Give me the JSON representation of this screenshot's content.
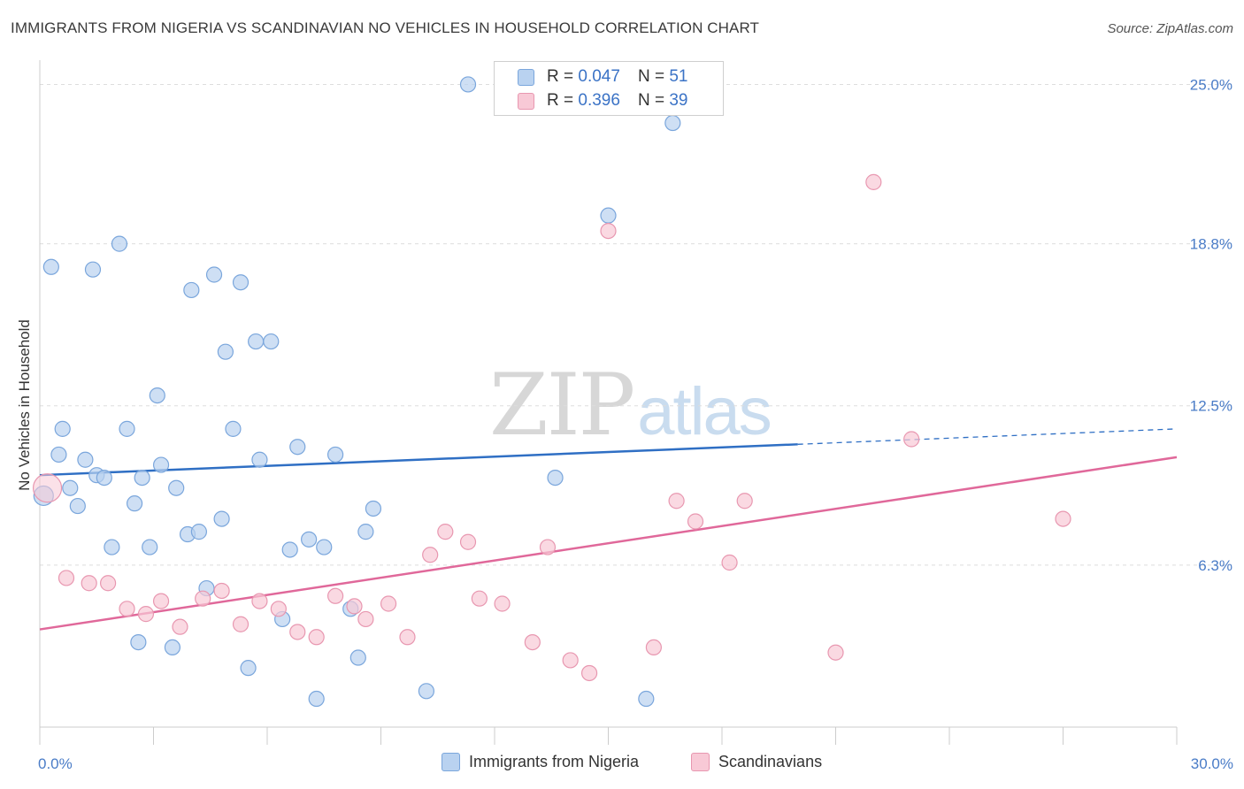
{
  "header": {
    "title": "IMMIGRANTS FROM NIGERIA VS SCANDINAVIAN NO VEHICLES IN HOUSEHOLD CORRELATION CHART",
    "source": "Source: ZipAtlas.com"
  },
  "watermark": {
    "zip": "ZIP",
    "atlas": "atlas"
  },
  "legend": {
    "r_label": "R =",
    "n_label": "N =",
    "series1": {
      "r": "0.047",
      "n": "51"
    },
    "series2": {
      "r": "0.396",
      "n": "39"
    }
  },
  "colors": {
    "blue_fill": "#b9d2f0",
    "blue_stroke": "#7aa6dc",
    "blue_line": "#2f6fc4",
    "pink_fill": "#f8c9d6",
    "pink_stroke": "#e897b0",
    "pink_line": "#e0689a",
    "tick_text": "#4a7cc7",
    "grid": "#dddddd"
  },
  "chart_data": {
    "type": "scatter",
    "title": "IMMIGRANTS FROM NIGERIA VS SCANDINAVIAN NO VEHICLES IN HOUSEHOLD CORRELATION CHART",
    "xlabel": "",
    "ylabel": "No Vehicles in Household",
    "xlim": [
      0,
      30
    ],
    "ylim": [
      0,
      25.6
    ],
    "x_tick_labels": [
      {
        "value": 0,
        "label": "0.0%"
      },
      {
        "value": 30,
        "label": "30.0%"
      }
    ],
    "y_tick_labels": [
      {
        "value": 6.3,
        "label": "6.3%"
      },
      {
        "value": 12.5,
        "label": "12.5%"
      },
      {
        "value": 18.8,
        "label": "18.8%"
      },
      {
        "value": 25.0,
        "label": "25.0%"
      }
    ],
    "grid": "horizontal dashed",
    "legend_placement": "top-center",
    "series": [
      {
        "name": "Immigrants from Nigeria",
        "points": [
          [
            0.1,
            9.0
          ],
          [
            0.3,
            17.9
          ],
          [
            0.5,
            10.6
          ],
          [
            0.6,
            11.6
          ],
          [
            0.8,
            9.3
          ],
          [
            1.0,
            8.6
          ],
          [
            1.2,
            10.4
          ],
          [
            1.4,
            17.8
          ],
          [
            1.5,
            9.8
          ],
          [
            1.7,
            9.7
          ],
          [
            1.9,
            7.0
          ],
          [
            2.1,
            18.8
          ],
          [
            2.3,
            11.6
          ],
          [
            2.5,
            8.7
          ],
          [
            2.6,
            3.3
          ],
          [
            2.7,
            9.7
          ],
          [
            2.9,
            7.0
          ],
          [
            3.1,
            12.9
          ],
          [
            3.2,
            10.2
          ],
          [
            3.5,
            3.1
          ],
          [
            3.6,
            9.3
          ],
          [
            3.9,
            7.5
          ],
          [
            4.0,
            17.0
          ],
          [
            4.2,
            7.6
          ],
          [
            4.4,
            5.4
          ],
          [
            4.6,
            17.6
          ],
          [
            4.8,
            8.1
          ],
          [
            4.9,
            14.6
          ],
          [
            5.1,
            11.6
          ],
          [
            5.3,
            17.3
          ],
          [
            5.5,
            2.3
          ],
          [
            5.7,
            15.0
          ],
          [
            5.8,
            10.4
          ],
          [
            6.1,
            15.0
          ],
          [
            6.4,
            4.2
          ],
          [
            6.6,
            6.9
          ],
          [
            6.8,
            10.9
          ],
          [
            7.1,
            7.3
          ],
          [
            7.3,
            1.1
          ],
          [
            7.5,
            7.0
          ],
          [
            7.8,
            10.6
          ],
          [
            8.2,
            4.6
          ],
          [
            8.4,
            2.7
          ],
          [
            8.6,
            7.6
          ],
          [
            8.8,
            8.5
          ],
          [
            10.2,
            1.4
          ],
          [
            11.3,
            25.0
          ],
          [
            13.6,
            9.7
          ],
          [
            15.0,
            19.9
          ],
          [
            16.0,
            1.1
          ],
          [
            16.7,
            23.5
          ]
        ]
      },
      {
        "name": "Scandinavians",
        "points": [
          [
            0.2,
            9.3
          ],
          [
            0.7,
            5.8
          ],
          [
            1.3,
            5.6
          ],
          [
            1.8,
            5.6
          ],
          [
            2.3,
            4.6
          ],
          [
            2.8,
            4.4
          ],
          [
            3.2,
            4.9
          ],
          [
            3.7,
            3.9
          ],
          [
            4.3,
            5.0
          ],
          [
            4.8,
            5.3
          ],
          [
            5.3,
            4.0
          ],
          [
            5.8,
            4.9
          ],
          [
            6.3,
            4.6
          ],
          [
            6.8,
            3.7
          ],
          [
            7.3,
            3.5
          ],
          [
            7.8,
            5.1
          ],
          [
            8.3,
            4.7
          ],
          [
            8.6,
            4.2
          ],
          [
            9.2,
            4.8
          ],
          [
            9.7,
            3.5
          ],
          [
            10.3,
            6.7
          ],
          [
            10.7,
            7.6
          ],
          [
            11.3,
            7.2
          ],
          [
            11.6,
            5.0
          ],
          [
            12.2,
            4.8
          ],
          [
            13.0,
            3.3
          ],
          [
            13.4,
            7.0
          ],
          [
            14.0,
            2.6
          ],
          [
            14.5,
            2.1
          ],
          [
            15.0,
            19.3
          ],
          [
            16.2,
            3.1
          ],
          [
            16.8,
            8.8
          ],
          [
            17.3,
            8.0
          ],
          [
            18.2,
            6.4
          ],
          [
            18.6,
            8.8
          ],
          [
            21.0,
            2.9
          ],
          [
            22.0,
            21.2
          ],
          [
            23.0,
            11.2
          ],
          [
            27.0,
            8.1
          ]
        ]
      }
    ],
    "trend_lines": [
      {
        "series": "Immigrants from Nigeria",
        "x": [
          0,
          20
        ],
        "y": [
          9.8,
          11.0
        ],
        "dashed_extension_to": [
          30,
          11.6
        ]
      },
      {
        "series": "Scandinavians",
        "x": [
          0,
          30
        ],
        "y": [
          3.8,
          10.5
        ]
      }
    ]
  }
}
